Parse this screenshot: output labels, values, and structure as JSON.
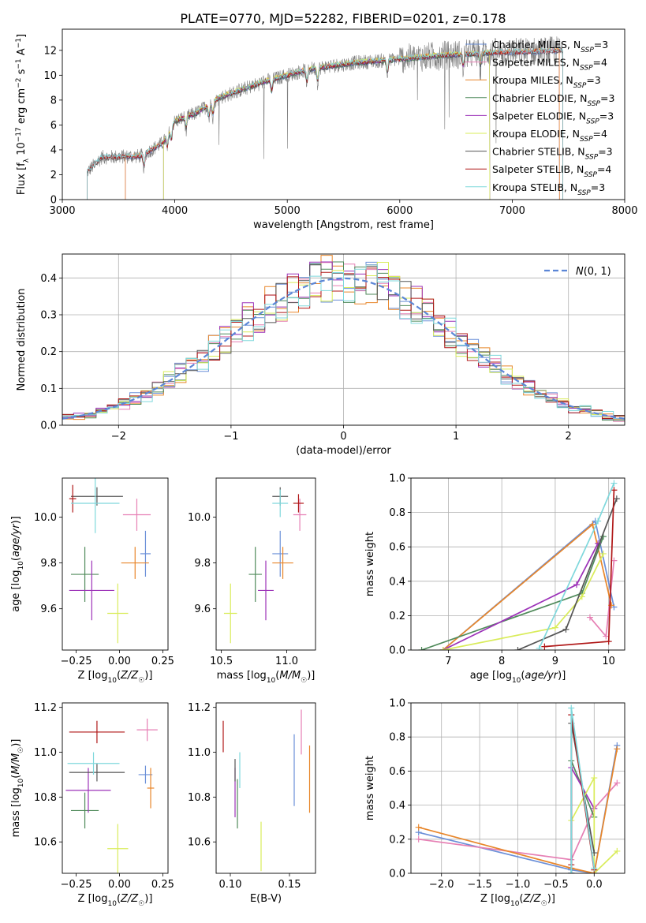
{
  "figure_title": "PLATE=0770, MJD=52282, FIBERID=0201, z=0.178",
  "model_colors": {
    "Chabrier MILES": "#6a8fd8",
    "Salpeter MILES": "#e67fb4",
    "Kroupa MILES": "#e8862a",
    "Chabrier ELODIE": "#4f8a5a",
    "Salpeter ELODIE": "#9c32b8",
    "Kroupa ELODIE": "#d9ec5a",
    "Chabrier STELIB": "#555555",
    "Salpeter STELIB": "#b01818",
    "Kroupa STELIB": "#7fd8dc"
  },
  "chart_data": [
    {
      "id": "spectrum",
      "type": "line",
      "xlabel": "wavelength [Angstrom, rest frame]",
      "ylabel": "Flux [f_λ 10^-17 erg cm^-2 s^-1 A^-1]",
      "xlim": [
        3000,
        8000
      ],
      "ylim": [
        0,
        13.7
      ],
      "xticks": [
        3000,
        4000,
        5000,
        6000,
        7000,
        8000
      ],
      "yticks": [
        0,
        2,
        4,
        6,
        8,
        10,
        12
      ],
      "legend": [
        {
          "model": "Chabrier MILES",
          "n": "3"
        },
        {
          "model": "Salpeter MILES",
          "n": "4"
        },
        {
          "model": "Kroupa MILES",
          "n": "3"
        },
        {
          "model": "Chabrier ELODIE",
          "n": "3"
        },
        {
          "model": "Salpeter ELODIE",
          "n": "3"
        },
        {
          "model": "Kroupa ELODIE",
          "n": "4"
        },
        {
          "model": "Chabrier STELIB",
          "n": "3"
        },
        {
          "model": "Salpeter STELIB",
          "n": "4"
        },
        {
          "model": "Kroupa STELIB",
          "n": "3"
        }
      ],
      "legend_position": "upper right",
      "series": [
        {
          "name": "data",
          "x_range": [
            3220,
            7450
          ],
          "continuum": [
            [
              3220,
              2.2
            ],
            [
              3350,
              3.4
            ],
            [
              3700,
              3.5
            ],
            [
              3900,
              4.6
            ],
            [
              4000,
              6.3
            ],
            [
              4200,
              7.0
            ],
            [
              4400,
              8.2
            ],
            [
              4800,
              9.5
            ],
            [
              5200,
              10.5
            ],
            [
              5600,
              11.0
            ],
            [
              6000,
              11.3
            ],
            [
              6400,
              11.6
            ],
            [
              6800,
              11.8
            ],
            [
              7200,
              11.9
            ],
            [
              7450,
              12.0
            ]
          ]
        }
      ]
    },
    {
      "id": "residuals",
      "type": "line",
      "xlabel": "(data-model)/error",
      "ylabel": "Normed distribution",
      "xlim": [
        -2.5,
        2.5
      ],
      "ylim": [
        0,
        0.465
      ],
      "xticks": [
        -2,
        -1,
        0,
        1,
        2
      ],
      "yticks": [
        0.0,
        0.1,
        0.2,
        0.3,
        0.4
      ],
      "grid": true,
      "reference_curve": "N(0,1)",
      "legend_position": "upper right"
    },
    {
      "id": "age-vs-Z",
      "type": "scatter",
      "xlabel": "Z [log10(Z/Z☉)]",
      "ylabel": "age [log10(age/yr)]",
      "xlim": [
        -0.33,
        0.28
      ],
      "ylim": [
        9.42,
        10.17
      ],
      "xticks": [
        -0.25,
        0.0,
        0.25
      ],
      "yticks": [
        9.6,
        9.8,
        10.0
      ],
      "points": [
        {
          "model": "Chabrier MILES",
          "x": 0.15,
          "y": 9.84,
          "xerr": [
            0.03,
            0.03
          ],
          "yerr": [
            0.1,
            0.1
          ]
        },
        {
          "model": "Salpeter MILES",
          "x": 0.1,
          "y": 10.01,
          "xerr": [
            0.08,
            0.08
          ],
          "yerr": [
            0.07,
            0.07
          ]
        },
        {
          "model": "Kroupa MILES",
          "x": 0.09,
          "y": 9.8,
          "xerr": [
            0.08,
            0.08
          ],
          "yerr": [
            0.07,
            0.07
          ]
        },
        {
          "model": "Chabrier ELODIE",
          "x": -0.2,
          "y": 9.75,
          "xerr": [
            0.08,
            0.08
          ],
          "yerr": [
            0.12,
            0.12
          ]
        },
        {
          "model": "Salpeter ELODIE",
          "x": -0.16,
          "y": 9.68,
          "xerr": [
            0.13,
            0.13
          ],
          "yerr": [
            0.13,
            0.13
          ]
        },
        {
          "model": "Kroupa ELODIE",
          "x": -0.01,
          "y": 9.58,
          "xerr": [
            0.06,
            0.06
          ],
          "yerr": [
            0.13,
            0.13
          ]
        },
        {
          "model": "Chabrier STELIB",
          "x": -0.13,
          "y": 10.09,
          "xerr": [
            0.15,
            0.15
          ],
          "yerr": [
            0.04,
            0.04
          ]
        },
        {
          "model": "Salpeter STELIB",
          "x": -0.27,
          "y": 10.08,
          "xerr": [
            0.02,
            0.02
          ],
          "yerr": [
            0.06,
            0.06
          ]
        },
        {
          "model": "Kroupa STELIB",
          "x": -0.14,
          "y": 10.06,
          "xerr": [
            0.14,
            0.14
          ],
          "yerr": [
            0.13,
            0.13
          ]
        }
      ]
    },
    {
      "id": "age-vs-mass",
      "type": "scatter",
      "xlabel": "mass [log10(M/M☉)]",
      "ylabel": "",
      "xlim": [
        10.46,
        11.22
      ],
      "ylim": [
        9.42,
        10.17
      ],
      "xticks": [
        10.5,
        11.0
      ],
      "yticks": [
        9.6,
        9.8,
        10.0
      ],
      "points": [
        {
          "model": "Chabrier MILES",
          "x": 10.95,
          "y": 9.84,
          "xerr": [
            0.06,
            0.06
          ],
          "yerr": [
            0.1,
            0.1
          ]
        },
        {
          "model": "Salpeter MILES",
          "x": 11.1,
          "y": 10.01,
          "xerr": [
            0.05,
            0.05
          ],
          "yerr": [
            0.07,
            0.07
          ]
        },
        {
          "model": "Kroupa MILES",
          "x": 10.97,
          "y": 9.8,
          "xerr": [
            0.08,
            0.08
          ],
          "yerr": [
            0.07,
            0.07
          ]
        },
        {
          "model": "Chabrier ELODIE",
          "x": 10.76,
          "y": 9.75,
          "xerr": [
            0.05,
            0.05
          ],
          "yerr": [
            0.12,
            0.12
          ]
        },
        {
          "model": "Salpeter ELODIE",
          "x": 10.84,
          "y": 9.68,
          "xerr": [
            0.06,
            0.06
          ],
          "yerr": [
            0.13,
            0.13
          ]
        },
        {
          "model": "Kroupa ELODIE",
          "x": 10.57,
          "y": 9.58,
          "xerr": [
            0.05,
            0.05
          ],
          "yerr": [
            0.13,
            0.13
          ]
        },
        {
          "model": "Chabrier STELIB",
          "x": 10.95,
          "y": 10.09,
          "xerr": [
            0.06,
            0.06
          ],
          "yerr": [
            0.04,
            0.04
          ]
        },
        {
          "model": "Salpeter STELIB",
          "x": 11.09,
          "y": 10.06,
          "xerr": [
            0.04,
            0.04
          ],
          "yerr": [
            0.04,
            0.04
          ]
        },
        {
          "model": "Kroupa STELIB",
          "x": 10.95,
          "y": 10.06,
          "xerr": [
            0.06,
            0.06
          ],
          "yerr": [
            0.06,
            0.06
          ]
        }
      ]
    },
    {
      "id": "massweight-vs-age",
      "type": "line",
      "xlabel": "age [log10(age/yr)]",
      "ylabel": "mass weight",
      "xlim": [
        6.3,
        10.3
      ],
      "ylim": [
        0,
        1.0
      ],
      "xticks": [
        7,
        8,
        9,
        10
      ],
      "yticks": [
        0.0,
        0.2,
        0.4,
        0.6,
        0.8,
        1.0
      ],
      "grid": true,
      "series": [
        {
          "model": "Chabrier MILES",
          "x": [
            6.9,
            9.75,
            10.1
          ],
          "y": [
            0.0,
            0.75,
            0.25
          ]
        },
        {
          "model": "Salpeter MILES",
          "x": [
            9.65,
            9.95,
            10.1
          ],
          "y": [
            0.19,
            0.08,
            0.52
          ]
        },
        {
          "model": "Kroupa MILES",
          "x": [
            6.9,
            9.7,
            10.05
          ],
          "y": [
            0.0,
            0.73,
            0.26
          ]
        },
        {
          "model": "Chabrier ELODIE",
          "x": [
            6.5,
            9.5,
            9.9
          ],
          "y": [
            0.0,
            0.33,
            0.66
          ]
        },
        {
          "model": "Salpeter ELODIE",
          "x": [
            6.9,
            9.4,
            9.8
          ],
          "y": [
            0.0,
            0.38,
            0.62
          ]
        },
        {
          "model": "Kroupa ELODIE",
          "x": [
            6.9,
            9.0,
            9.5,
            9.9
          ],
          "y": [
            0.0,
            0.13,
            0.31,
            0.56
          ]
        },
        {
          "model": "Chabrier STELIB",
          "x": [
            8.3,
            9.2,
            10.15
          ],
          "y": [
            0.0,
            0.12,
            0.88
          ]
        },
        {
          "model": "Salpeter STELIB",
          "x": [
            8.8,
            10.0,
            10.1
          ],
          "y": [
            0.02,
            0.05,
            0.93
          ]
        },
        {
          "model": "Kroupa STELIB",
          "x": [
            8.7,
            9.8,
            10.1
          ],
          "y": [
            0.01,
            0.75,
            0.97
          ]
        }
      ]
    },
    {
      "id": "mass-vs-Z",
      "type": "scatter",
      "xlabel": "Z [log10(Z/Z☉)]",
      "ylabel": "mass [log10(M/M☉)]",
      "xlim": [
        -0.33,
        0.28
      ],
      "ylim": [
        10.46,
        11.22
      ],
      "xticks": [
        -0.25,
        0.0,
        0.25
      ],
      "yticks": [
        10.6,
        10.8,
        11.0,
        11.2
      ],
      "points": [
        {
          "model": "Chabrier MILES",
          "x": 0.15,
          "y": 10.9,
          "xerr": [
            0.04,
            0.04
          ],
          "yerr": [
            0.04,
            0.04
          ]
        },
        {
          "model": "Salpeter MILES",
          "x": 0.16,
          "y": 11.1,
          "xerr": [
            0.06,
            0.06
          ],
          "yerr": [
            0.05,
            0.05
          ]
        },
        {
          "model": "Kroupa MILES",
          "x": 0.18,
          "y": 10.84,
          "xerr": [
            0.02,
            0.02
          ],
          "yerr": [
            0.09,
            0.09
          ]
        },
        {
          "model": "Chabrier ELODIE",
          "x": -0.2,
          "y": 10.74,
          "xerr": [
            0.08,
            0.08
          ],
          "yerr": [
            0.08,
            0.08
          ]
        },
        {
          "model": "Salpeter ELODIE",
          "x": -0.18,
          "y": 10.83,
          "xerr": [
            0.13,
            0.13
          ],
          "yerr": [
            0.1,
            0.1
          ]
        },
        {
          "model": "Kroupa ELODIE",
          "x": -0.01,
          "y": 10.57,
          "xerr": [
            0.06,
            0.06
          ],
          "yerr": [
            0.11,
            0.11
          ]
        },
        {
          "model": "Chabrier STELIB",
          "x": -0.13,
          "y": 10.91,
          "xerr": [
            0.16,
            0.16
          ],
          "yerr": [
            0.04,
            0.04
          ]
        },
        {
          "model": "Salpeter STELIB",
          "x": -0.13,
          "y": 11.09,
          "xerr": [
            0.16,
            0.16
          ],
          "yerr": [
            0.05,
            0.05
          ]
        },
        {
          "model": "Kroupa STELIB",
          "x": -0.15,
          "y": 10.95,
          "xerr": [
            0.15,
            0.15
          ],
          "yerr": [
            0.05,
            0.05
          ]
        }
      ]
    },
    {
      "id": "mass-vs-EBV",
      "type": "scatter",
      "xlabel": "E(B-V)",
      "ylabel": "",
      "xlim": [
        0.088,
        0.172
      ],
      "ylim": [
        10.46,
        11.22
      ],
      "xticks": [
        0.1,
        0.15
      ],
      "yticks": [
        10.6,
        10.8,
        11.0,
        11.2
      ],
      "points": [
        {
          "model": "Chabrier MILES",
          "x": 0.154,
          "y": 10.92,
          "xerr": [
            0,
            0
          ],
          "yerr": [
            0.16,
            0.16
          ]
        },
        {
          "model": "Salpeter MILES",
          "x": 0.16,
          "y": 11.09,
          "xerr": [
            0,
            0
          ],
          "yerr": [
            0.1,
            0.1
          ]
        },
        {
          "model": "Kroupa MILES",
          "x": 0.167,
          "y": 10.88,
          "xerr": [
            0,
            0
          ],
          "yerr": [
            0.15,
            0.15
          ]
        },
        {
          "model": "Chabrier ELODIE",
          "x": 0.106,
          "y": 10.77,
          "xerr": [
            0,
            0
          ],
          "yerr": [
            0.11,
            0.11
          ]
        },
        {
          "model": "Salpeter ELODIE",
          "x": 0.104,
          "y": 10.82,
          "xerr": [
            0,
            0
          ],
          "yerr": [
            0.11,
            0.11
          ]
        },
        {
          "model": "Kroupa ELODIE",
          "x": 0.126,
          "y": 10.58,
          "xerr": [
            0,
            0
          ],
          "yerr": [
            0.11,
            0.11
          ]
        },
        {
          "model": "Chabrier STELIB",
          "x": 0.104,
          "y": 10.92,
          "xerr": [
            0,
            0
          ],
          "yerr": [
            0.05,
            0.05
          ]
        },
        {
          "model": "Salpeter STELIB",
          "x": 0.094,
          "y": 11.07,
          "xerr": [
            0,
            0
          ],
          "yerr": [
            0.07,
            0.07
          ]
        },
        {
          "model": "Kroupa STELIB",
          "x": 0.108,
          "y": 10.92,
          "xerr": [
            0,
            0
          ],
          "yerr": [
            0.08,
            0.08
          ]
        }
      ]
    },
    {
      "id": "massweight-vs-Z",
      "type": "line",
      "xlabel": "Z [log10(Z/Z☉)]",
      "ylabel": "mass weight",
      "xlim": [
        -2.4,
        0.4
      ],
      "ylim": [
        0,
        1.0
      ],
      "xticks": [
        -2.0,
        -1.5,
        -1.0,
        -0.5,
        0.0
      ],
      "yticks": [
        0.0,
        0.2,
        0.4,
        0.6,
        0.8,
        1.0
      ],
      "grid": true,
      "series": [
        {
          "model": "Chabrier MILES",
          "x": [
            -2.3,
            -0.3,
            0.0,
            0.3
          ],
          "y": [
            0.24,
            0.02,
            0.0,
            0.75
          ]
        },
        {
          "model": "Salpeter MILES",
          "x": [
            -2.3,
            -0.3,
            0.0,
            0.3
          ],
          "y": [
            0.2,
            0.08,
            0.38,
            0.53
          ]
        },
        {
          "model": "Kroupa MILES",
          "x": [
            -2.3,
            -0.3,
            0.0,
            0.3
          ],
          "y": [
            0.27,
            0.03,
            0.0,
            0.73
          ]
        },
        {
          "model": "Chabrier ELODIE",
          "x": [
            -0.3,
            -0.3,
            0.0
          ],
          "y": [
            0.0,
            0.66,
            0.33
          ]
        },
        {
          "model": "Salpeter ELODIE",
          "x": [
            -0.3,
            -0.3,
            0.0
          ],
          "y": [
            0.0,
            0.62,
            0.38
          ]
        },
        {
          "model": "Kroupa ELODIE",
          "x": [
            -0.3,
            0.0,
            0.0,
            0.3
          ],
          "y": [
            0.31,
            0.56,
            0.0,
            0.13
          ]
        },
        {
          "model": "Chabrier STELIB",
          "x": [
            -0.3,
            -0.3,
            0.0
          ],
          "y": [
            0.0,
            0.88,
            0.12
          ]
        },
        {
          "model": "Salpeter STELIB",
          "x": [
            -0.3,
            -0.3,
            0.0
          ],
          "y": [
            0.05,
            0.93,
            0.02
          ]
        },
        {
          "model": "Kroupa STELIB",
          "x": [
            -0.3,
            -0.3,
            0.0
          ],
          "y": [
            0.0,
            0.97,
            0.03
          ]
        }
      ]
    }
  ]
}
